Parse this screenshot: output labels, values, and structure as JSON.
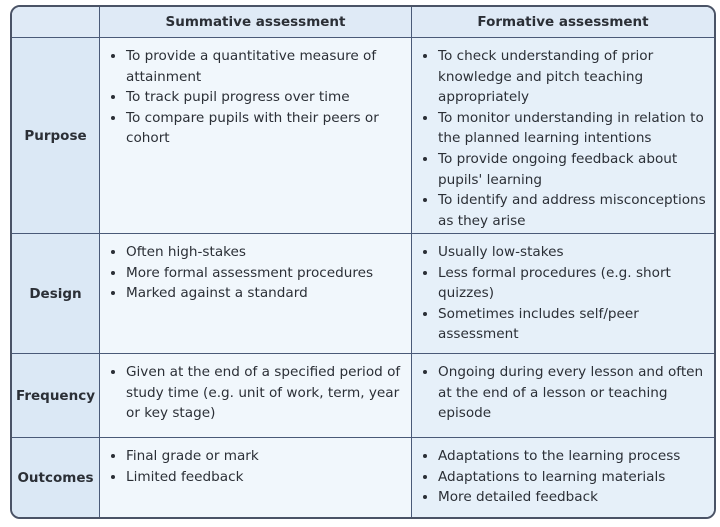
{
  "headers": {
    "corner": "",
    "summative": "Summative assessment",
    "formative": "Formative assessment"
  },
  "rows": [
    {
      "label": "Purpose",
      "summative": [
        "To provide a quantitative measure of attainment",
        "To track pupil progress over time",
        "To compare pupils with their peers or cohort"
      ],
      "formative": [
        "To check understanding of prior knowledge and pitch teaching appropriately",
        "To monitor understanding in relation to the planned learning intentions",
        "To provide ongoing feedback about pupils' learning",
        "To identify and address misconceptions as they arise"
      ]
    },
    {
      "label": "Design",
      "summative": [
        "Often high-stakes",
        "More formal assessment procedures",
        "Marked against a standard"
      ],
      "formative": [
        "Usually low-stakes",
        "Less formal procedures (e.g. short quizzes)",
        "Sometimes includes self/peer assessment"
      ]
    },
    {
      "label": "Frequency",
      "summative": [
        "Given at the end of a specified period of study time (e.g. unit of work, term, year or key stage)"
      ],
      "formative": [
        "Ongoing during every lesson and often at the end of a lesson or teaching episode"
      ]
    },
    {
      "label": "Outcomes",
      "summative": [
        "Final grade or mark",
        "Limited feedback"
      ],
      "formative": [
        "Adaptations to the learning process",
        "Adaptations to learning materials",
        "More detailed feedback"
      ]
    }
  ]
}
